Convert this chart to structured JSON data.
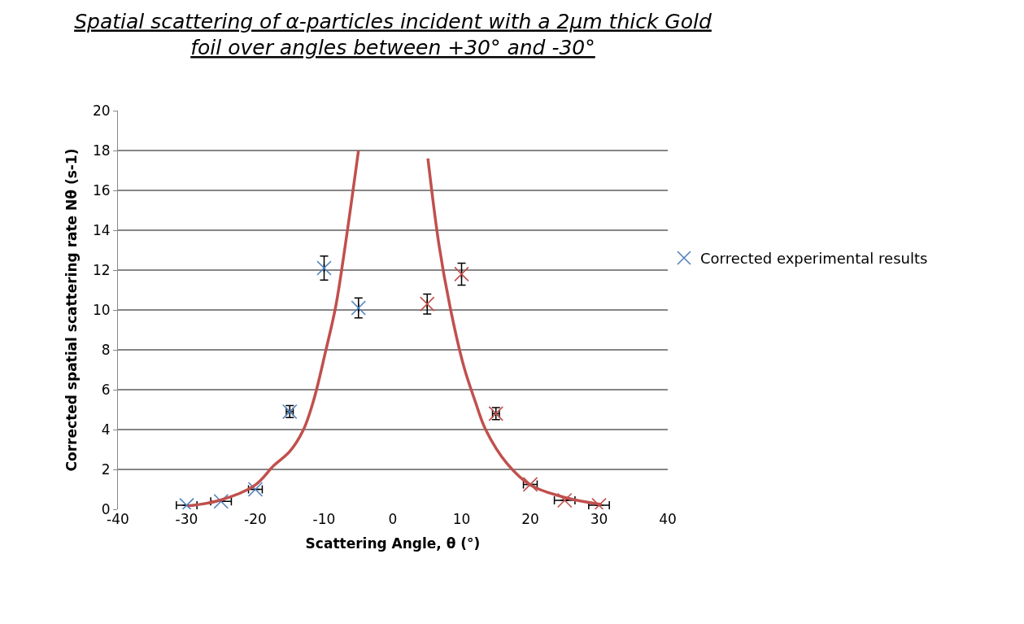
{
  "chart_data": {
    "type": "scatter",
    "title": "Spatial scattering of α-particles incident with a 2µm thick Gold foil over angles between +30° and -30°",
    "xlabel": "Scattering Angle, θ (°)",
    "ylabel": "Corrected spatial scattering rate Nθ (s-1)",
    "xlim": [
      -40,
      40
    ],
    "xticks": [
      -40,
      -30,
      -20,
      -10,
      0,
      10,
      20,
      30,
      40
    ],
    "ylim": [
      0,
      20
    ],
    "yticks": [
      0,
      2,
      4,
      6,
      8,
      10,
      12,
      14,
      16,
      18,
      20
    ],
    "grid": "y",
    "legend": "right",
    "series": [
      {
        "name": "Corrected experimental results",
        "marker": "cross",
        "color": "#4f81bd",
        "x": [
          -30,
          -25,
          -20,
          -15,
          -10,
          -5
        ],
        "values": [
          0.2,
          0.4,
          1.0,
          4.9,
          12.1,
          10.1
        ],
        "errors": [
          null,
          null,
          null,
          0.3,
          0.6,
          0.5
        ],
        "xerrors": [
          1.5,
          1.5,
          1,
          0.5,
          null,
          null
        ]
      },
      {
        "marker": "cross",
        "color": "#c0504d",
        "x": [
          5,
          10,
          15,
          20,
          25,
          30
        ],
        "values": [
          10.3,
          11.8,
          4.8,
          1.25,
          0.45,
          0.2
        ],
        "errors": [
          0.5,
          0.55,
          0.3,
          null,
          null,
          null
        ],
        "xerrors": [
          null,
          null,
          0.5,
          1,
          1.5,
          1.5
        ]
      },
      {
        "type": "line",
        "marker": "none",
        "line_style": "solid",
        "color": "#c0504d",
        "x": [
          -29.8,
          -25.2,
          -20.1,
          -17.3,
          -15,
          -13,
          -11.5,
          -9.8,
          -8.3,
          -6.9,
          -5
        ],
        "values": [
          0.17,
          0.45,
          1.2,
          2.2,
          2.9,
          4.0,
          5.5,
          7.9,
          10.2,
          13.3,
          18.0
        ]
      },
      {
        "type": "line",
        "marker": "none",
        "line_style": "solid",
        "color": "#c0504d",
        "x": [
          5.1,
          6.7,
          8.3,
          10.3,
          12,
          13.5,
          16.6,
          20.1,
          25.3,
          30.4
        ],
        "values": [
          17.6,
          13.3,
          10.2,
          7.2,
          5.4,
          4.0,
          2.3,
          1.2,
          0.57,
          0.24
        ]
      }
    ]
  }
}
